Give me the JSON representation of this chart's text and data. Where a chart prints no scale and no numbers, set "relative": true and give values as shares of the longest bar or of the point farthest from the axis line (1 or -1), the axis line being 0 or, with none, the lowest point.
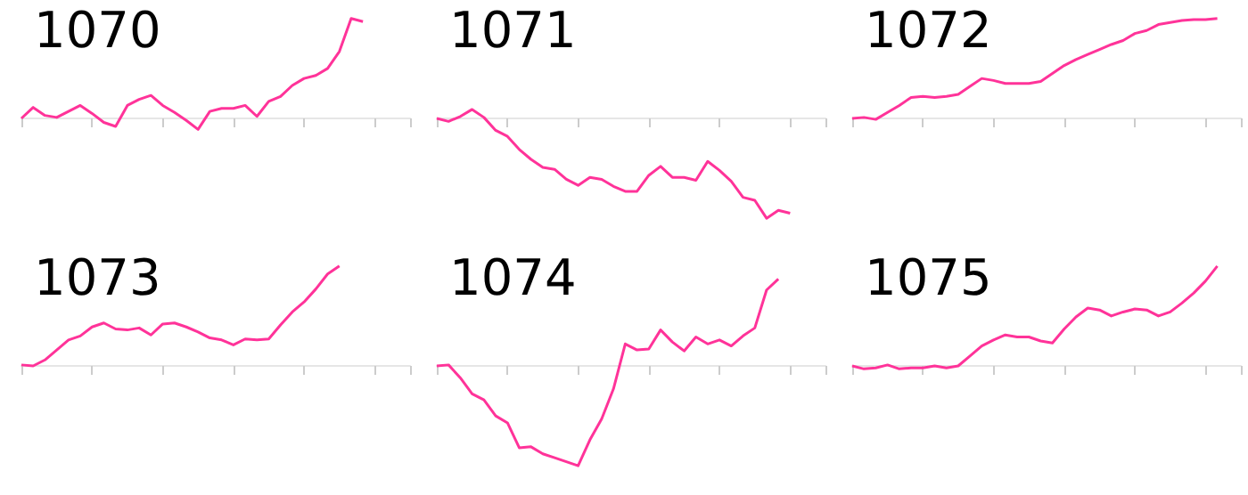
{
  "chart_data": [
    {
      "type": "line",
      "title": "1070",
      "relative": true,
      "categories": [
        null,
        null,
        null,
        null,
        null,
        null,
        null,
        null,
        null,
        null,
        null,
        null,
        null,
        null,
        null,
        null,
        null,
        null,
        null,
        null,
        null,
        null,
        null,
        null,
        null,
        null,
        null,
        null,
        null,
        null,
        null,
        null,
        null,
        null
      ],
      "series": [
        {
          "color": "#ff3399",
          "values": [
            0,
            0.11,
            0.03,
            0.01,
            0.07,
            0.13,
            0.05,
            -0.04,
            -0.08,
            0.13,
            0.19,
            0.23,
            0.13,
            0.06,
            -0.02,
            -0.11,
            0.07,
            0.1,
            0.1,
            0.13,
            0.02,
            0.17,
            0.22,
            0.33,
            0.4,
            0.43,
            0.5,
            0.67,
            1,
            0.97,
            null,
            null,
            null,
            null
          ]
        }
      ]
    },
    {
      "type": "line",
      "title": "1071",
      "relative": true,
      "categories": [
        null,
        null,
        null,
        null,
        null,
        null,
        null,
        null,
        null,
        null,
        null,
        null,
        null,
        null,
        null,
        null,
        null,
        null,
        null,
        null,
        null,
        null,
        null,
        null,
        null,
        null,
        null,
        null,
        null,
        null,
        null,
        null,
        null,
        null
      ],
      "series": [
        {
          "color": "#ff3399",
          "values": [
            0,
            -0.03,
            0.02,
            0.09,
            0.01,
            -0.12,
            -0.18,
            -0.31,
            -0.41,
            -0.49,
            -0.51,
            -0.61,
            -0.67,
            -0.59,
            -0.61,
            -0.68,
            -0.73,
            -0.73,
            -0.57,
            -0.48,
            -0.59,
            -0.59,
            -0.62,
            -0.43,
            -0.52,
            -0.63,
            -0.79,
            -0.82,
            -1,
            -0.92,
            -0.95,
            null,
            null,
            null
          ]
        }
      ]
    },
    {
      "type": "line",
      "title": "1072",
      "relative": true,
      "categories": [
        null,
        null,
        null,
        null,
        null,
        null,
        null,
        null,
        null,
        null,
        null,
        null,
        null,
        null,
        null,
        null,
        null,
        null,
        null,
        null,
        null,
        null,
        null,
        null,
        null,
        null,
        null,
        null,
        null,
        null,
        null,
        null,
        null,
        null
      ],
      "series": [
        {
          "color": "#ff3399",
          "values": [
            0,
            0.01,
            -0.01,
            0.06,
            0.13,
            0.21,
            0.22,
            0.21,
            0.22,
            0.24,
            0.32,
            0.4,
            0.38,
            0.35,
            0.35,
            0.35,
            0.37,
            0.45,
            0.53,
            0.59,
            0.64,
            0.69,
            0.74,
            0.78,
            0.85,
            0.88,
            0.94,
            0.96,
            0.98,
            0.99,
            0.99,
            1,
            null,
            null
          ]
        }
      ]
    },
    {
      "type": "line",
      "title": "1073",
      "relative": true,
      "categories": [
        null,
        null,
        null,
        null,
        null,
        null,
        null,
        null,
        null,
        null,
        null,
        null,
        null,
        null,
        null,
        null,
        null,
        null,
        null,
        null,
        null,
        null,
        null,
        null,
        null,
        null,
        null,
        null,
        null,
        null,
        null,
        null,
        null,
        null
      ],
      "series": [
        {
          "color": "#ff3399",
          "values": [
            0.01,
            0,
            0.06,
            0.16,
            0.26,
            0.3,
            0.39,
            0.43,
            0.37,
            0.36,
            0.38,
            0.31,
            0.42,
            0.43,
            0.39,
            0.34,
            0.28,
            0.26,
            0.21,
            0.27,
            0.26,
            0.27,
            0.41,
            0.54,
            0.64,
            0.77,
            0.92,
            1,
            null,
            null,
            null,
            null,
            null,
            null
          ]
        }
      ]
    },
    {
      "type": "line",
      "title": "1074",
      "relative": true,
      "categories": [
        null,
        null,
        null,
        null,
        null,
        null,
        null,
        null,
        null,
        null,
        null,
        null,
        null,
        null,
        null,
        null,
        null,
        null,
        null,
        null,
        null,
        null,
        null,
        null,
        null,
        null,
        null,
        null,
        null,
        null,
        null,
        null,
        null,
        null
      ],
      "series": [
        {
          "color": "#ff3399",
          "values": [
            0,
            0.01,
            -0.12,
            -0.28,
            -0.34,
            -0.5,
            -0.57,
            -0.82,
            -0.81,
            -0.88,
            -0.92,
            -0.96,
            -1,
            -0.74,
            -0.53,
            -0.23,
            0.22,
            0.16,
            0.17,
            0.36,
            0.24,
            0.15,
            0.29,
            0.22,
            0.26,
            0.2,
            0.3,
            0.38,
            0.76,
            0.87,
            null,
            null,
            null,
            null
          ]
        }
      ]
    },
    {
      "type": "line",
      "title": "1075",
      "relative": true,
      "categories": [
        null,
        null,
        null,
        null,
        null,
        null,
        null,
        null,
        null,
        null,
        null,
        null,
        null,
        null,
        null,
        null,
        null,
        null,
        null,
        null,
        null,
        null,
        null,
        null,
        null,
        null,
        null,
        null,
        null,
        null,
        null,
        null,
        null,
        null
      ],
      "series": [
        {
          "color": "#ff3399",
          "values": [
            0,
            -0.03,
            -0.02,
            0.01,
            -0.03,
            -0.02,
            -0.02,
            0,
            -0.02,
            0,
            0.1,
            0.2,
            0.26,
            0.31,
            0.29,
            0.29,
            0.25,
            0.23,
            0.37,
            0.49,
            0.58,
            0.56,
            0.5,
            0.54,
            0.57,
            0.56,
            0.5,
            0.54,
            0.63,
            0.73,
            0.85,
            1,
            null,
            null
          ]
        }
      ]
    }
  ]
}
